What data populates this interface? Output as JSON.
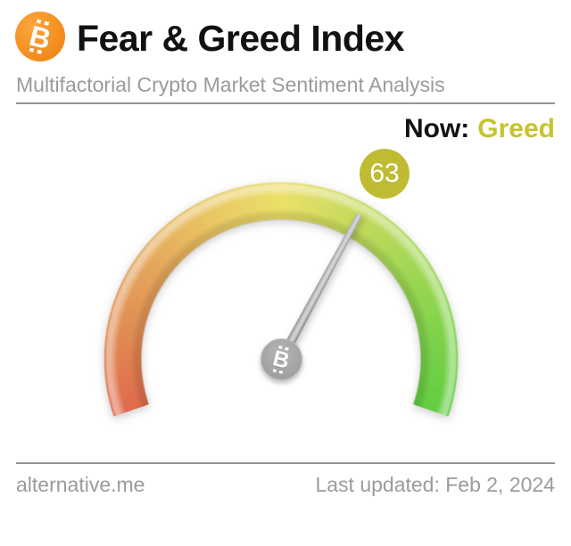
{
  "header": {
    "logo": "bitcoin-icon",
    "title": "Fear & Greed Index",
    "subtitle": "Multifactorial Crypto Market Sentiment Analysis"
  },
  "status": {
    "now_label": "Now:",
    "classification": "Greed"
  },
  "chart_data": {
    "type": "gauge",
    "title": "Fear & Greed Index",
    "value": 63,
    "min": 0,
    "max": 100,
    "classification": "Greed",
    "start_degrees": -109,
    "span_degrees": 218,
    "scale_stops": [
      {
        "pos": 0,
        "color": "#df6a4c"
      },
      {
        "pos": 12.5,
        "color": "#e08a53"
      },
      {
        "pos": 25,
        "color": "#e4a65c"
      },
      {
        "pos": 37.5,
        "color": "#e9c563"
      },
      {
        "pos": 50,
        "color": "#ebe06a"
      },
      {
        "pos": 62.5,
        "color": "#c6da5c"
      },
      {
        "pos": 75,
        "color": "#a2d755"
      },
      {
        "pos": 87.5,
        "color": "#7ed24a"
      },
      {
        "pos": 100,
        "color": "#62cd41"
      }
    ],
    "badge_color": "#bfbc34",
    "classification_color": "#c6c32f",
    "needle_color": "#a9a9a9"
  },
  "footer": {
    "source": "alternative.me",
    "last_updated": "Last updated: Feb 2, 2024"
  }
}
